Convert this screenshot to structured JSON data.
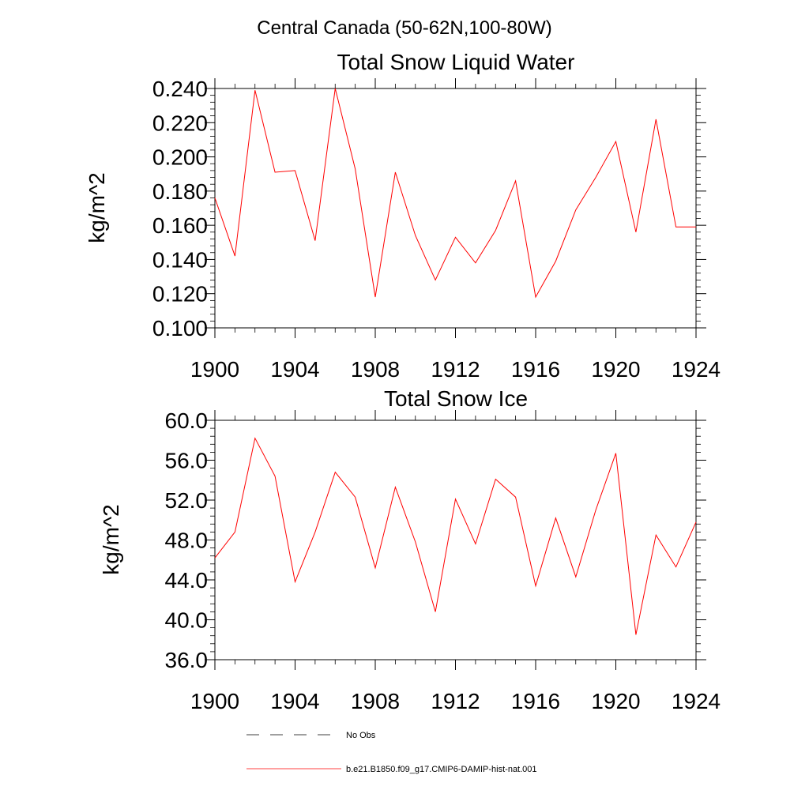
{
  "figure": {
    "region_title": "Central Canada (50-62N,100-80W)"
  },
  "legend": {
    "placement": "bottom",
    "entries": [
      {
        "label": "No Obs",
        "style": "dashed",
        "color": "#000000"
      },
      {
        "label": "b.e21.B1850.f09_g17.CMIP6-DAMIP-hist-nat.001",
        "style": "solid",
        "color": "#ff0000"
      }
    ]
  },
  "colors": {
    "series": "#ff0000",
    "axis": "#000000"
  },
  "chart_data": [
    {
      "type": "line",
      "title": "Total Snow Liquid Water",
      "xlabel": "",
      "ylabel": "kg/m^2",
      "xlim": [
        1900,
        1924
      ],
      "ylim": [
        0.1,
        0.24
      ],
      "xticks": [
        1900,
        1904,
        1908,
        1912,
        1916,
        1920,
        1924
      ],
      "xtick_labels": [
        "1900",
        "1904",
        "1908",
        "1912",
        "1916",
        "1920",
        "1924"
      ],
      "yticks": [
        0.1,
        0.12,
        0.14,
        0.16,
        0.18,
        0.2,
        0.22,
        0.24
      ],
      "ytick_labels": [
        "0.100",
        "0.120",
        "0.140",
        "0.160",
        "0.180",
        "0.200",
        "0.220",
        "0.240"
      ],
      "grid": false,
      "x": [
        1900,
        1901,
        1902,
        1903,
        1904,
        1905,
        1906,
        1907,
        1908,
        1909,
        1910,
        1911,
        1912,
        1913,
        1914,
        1915,
        1916,
        1917,
        1918,
        1919,
        1920,
        1921,
        1922,
        1923,
        1924
      ],
      "series": [
        {
          "color": "#ff0000",
          "values": [
            0.176,
            0.142,
            0.239,
            0.191,
            0.192,
            0.151,
            0.24,
            0.193,
            0.118,
            0.191,
            0.154,
            0.128,
            0.153,
            0.138,
            0.157,
            0.186,
            0.118,
            0.139,
            0.169,
            0.188,
            0.209,
            0.156,
            0.222,
            0.159,
            0.159
          ]
        }
      ]
    },
    {
      "type": "line",
      "title": "Total Snow Ice",
      "xlabel": "",
      "ylabel": "kg/m^2",
      "xlim": [
        1900,
        1924
      ],
      "ylim": [
        36,
        60
      ],
      "xticks": [
        1900,
        1904,
        1908,
        1912,
        1916,
        1920,
        1924
      ],
      "xtick_labels": [
        "1900",
        "1904",
        "1908",
        "1912",
        "1916",
        "1920",
        "1924"
      ],
      "yticks": [
        36,
        40,
        44,
        48,
        52,
        56,
        60
      ],
      "ytick_labels": [
        "36.0",
        "40.0",
        "44.0",
        "48.0",
        "52.0",
        "56.0",
        "60.0"
      ],
      "grid": false,
      "x": [
        1900,
        1901,
        1902,
        1903,
        1904,
        1905,
        1906,
        1907,
        1908,
        1909,
        1910,
        1911,
        1912,
        1913,
        1914,
        1915,
        1916,
        1917,
        1918,
        1919,
        1920,
        1921,
        1922,
        1923,
        1924
      ],
      "series": [
        {
          "color": "#ff0000",
          "values": [
            46.2,
            48.8,
            58.2,
            54.4,
            43.8,
            48.8,
            54.8,
            52.3,
            45.2,
            53.3,
            47.8,
            40.8,
            52.1,
            47.6,
            54.1,
            52.3,
            43.4,
            50.2,
            44.3,
            51.0,
            56.7,
            38.5,
            48.5,
            45.3,
            49.8
          ]
        }
      ]
    }
  ]
}
